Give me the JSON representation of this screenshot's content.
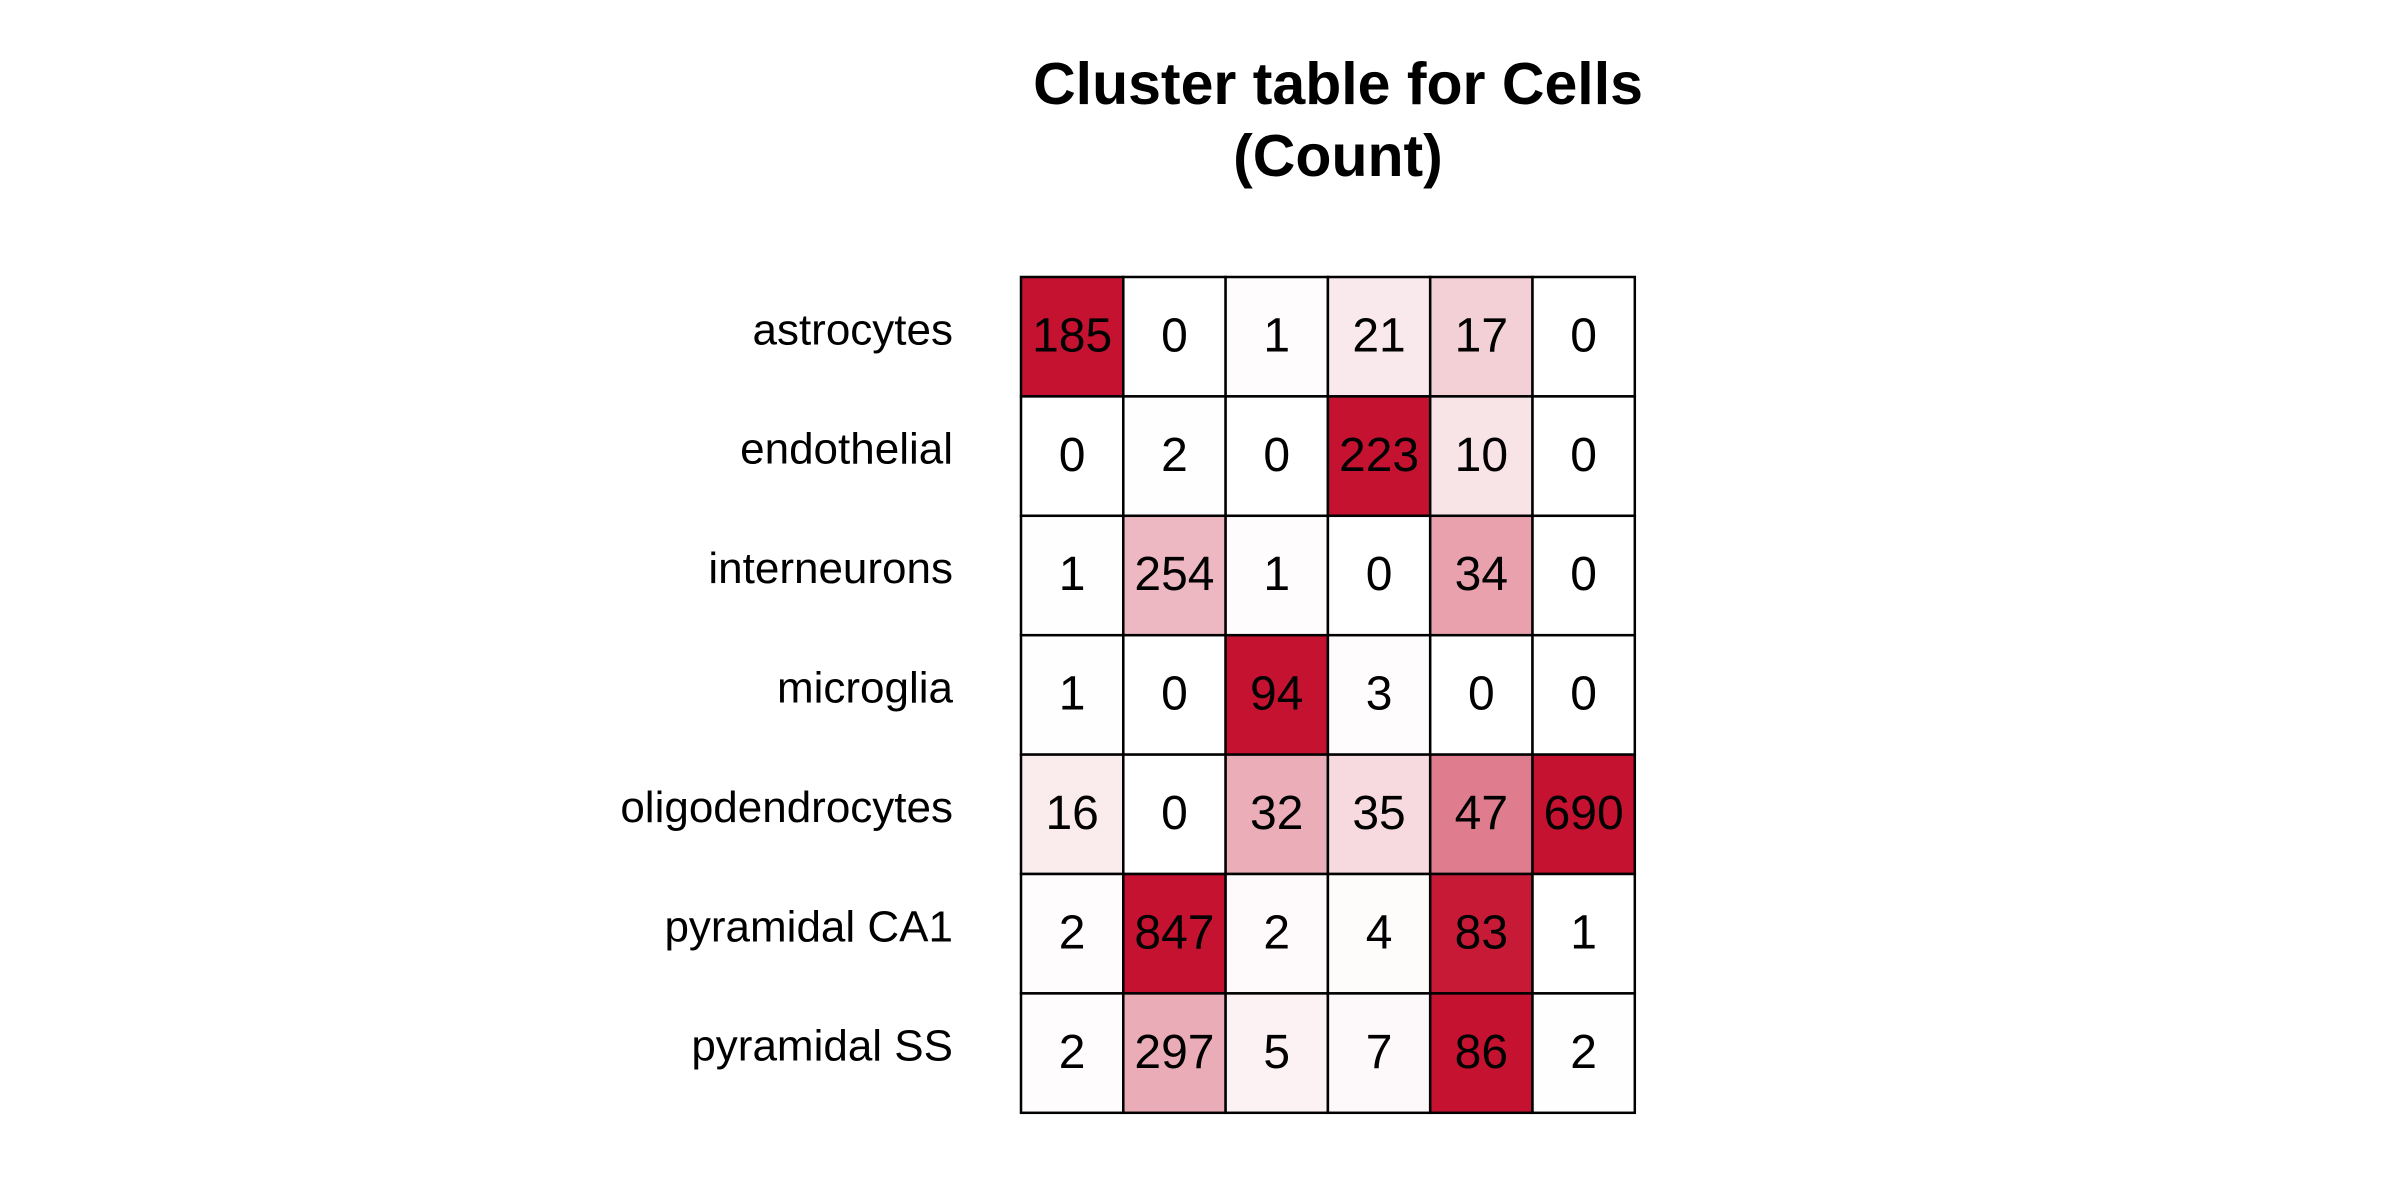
{
  "chart_data": {
    "type": "heatmap",
    "title": [
      "Cluster table for Cells",
      "(Count)"
    ],
    "rows": [
      "astrocytes",
      "endothelial",
      "interneurons",
      "microglia",
      "oligodendrocytes",
      "pyramidal CA1",
      "pyramidal SS"
    ],
    "columns": [
      "",
      "",
      "",
      "",
      "",
      ""
    ],
    "values": [
      [
        185,
        0,
        1,
        21,
        17,
        0
      ],
      [
        0,
        2,
        0,
        223,
        10,
        0
      ],
      [
        1,
        254,
        1,
        0,
        34,
        0
      ],
      [
        1,
        0,
        94,
        3,
        0,
        0
      ],
      [
        16,
        0,
        32,
        35,
        47,
        690
      ],
      [
        2,
        847,
        2,
        4,
        83,
        1
      ],
      [
        2,
        297,
        5,
        7,
        86,
        2
      ]
    ],
    "color_scale": {
      "low": "#ffffff",
      "high": "#c41230"
    },
    "cell_border_color": "#000000"
  }
}
